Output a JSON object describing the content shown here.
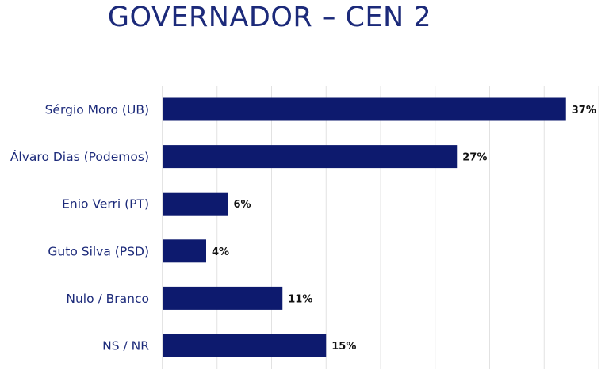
{
  "chart_data": {
    "type": "bar",
    "orientation": "horizontal",
    "title": "GOVERNADOR – CEN 2",
    "categories": [
      "Sérgio Moro (UB)",
      "Álvaro Dias (Podemos)",
      "Enio Verri (PT)",
      "Guto Silva (PSD)",
      "Nulo / Branco",
      "NS / NR"
    ],
    "values": [
      37,
      27,
      6,
      4,
      11,
      15
    ],
    "value_labels": [
      "37%",
      "27%",
      "6%",
      "4%",
      "11%",
      "15%"
    ],
    "xlim": [
      0,
      40
    ],
    "grid": true,
    "bar_color": "#0d1a6e"
  }
}
